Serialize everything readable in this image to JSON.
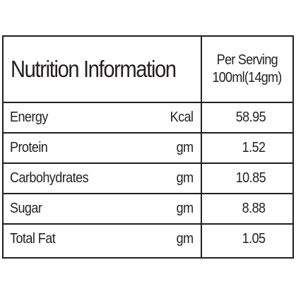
{
  "table": {
    "title": "Nutrition Information",
    "serving_header_line1": "Per Serving",
    "serving_header_line2": "100ml(14gm)",
    "rows": [
      {
        "nutrient": "Energy",
        "unit": "Kcal",
        "value": "58.95"
      },
      {
        "nutrient": "Protein",
        "unit": "gm",
        "value": "1.52"
      },
      {
        "nutrient": "Carbohydrates",
        "unit": "gm",
        "value": "10.85"
      },
      {
        "nutrient": "Sugar",
        "unit": "gm",
        "value": "8.88"
      },
      {
        "nutrient": "Total Fat",
        "unit": "gm",
        "value": "1.05"
      }
    ]
  },
  "colors": {
    "ink": "#231f20",
    "background": "#ffffff"
  }
}
